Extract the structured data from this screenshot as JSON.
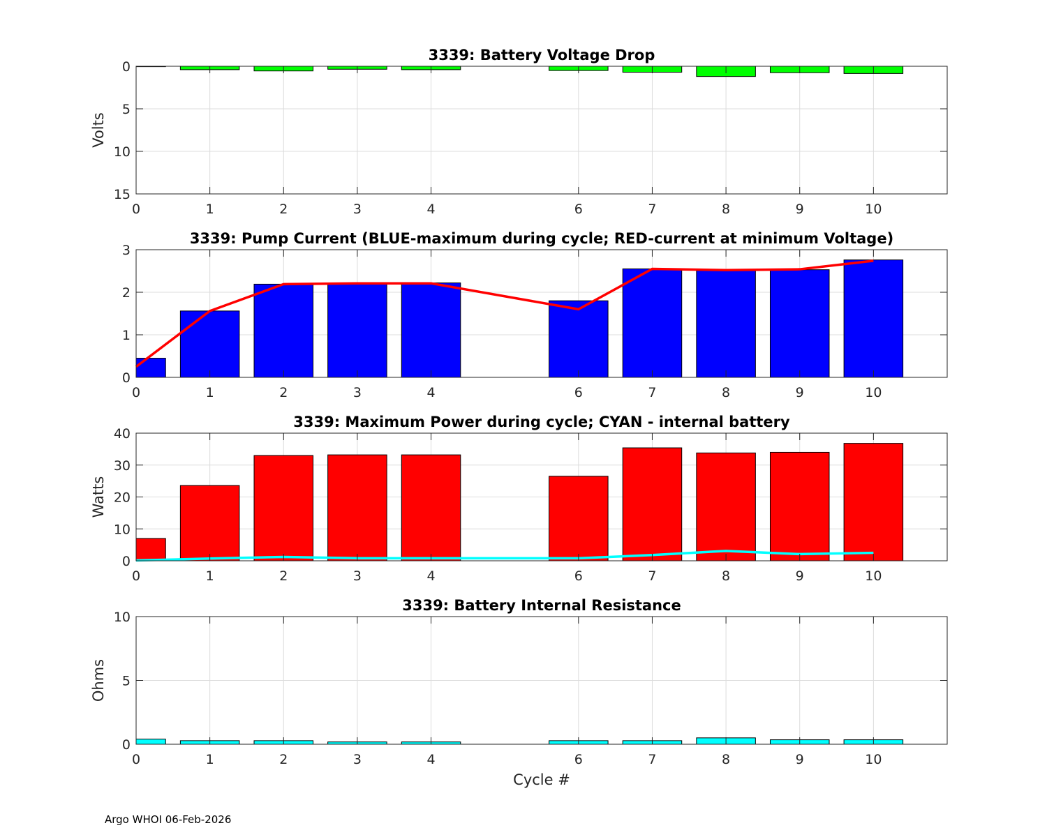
{
  "footer": "Argo WHOI 06-Feb-2026",
  "chart_data": [
    {
      "type": "bar",
      "id": "voltage-drop",
      "title": "3339: Battery Voltage Drop",
      "xlabel": "",
      "ylabel": "Volts",
      "xlim": [
        0,
        11
      ],
      "ylim": [
        0,
        15
      ],
      "y_reversed": true,
      "xticks": [
        "0",
        "1",
        "2",
        "3",
        "4",
        "6",
        "7",
        "8",
        "9",
        "10"
      ],
      "yticks": [
        "0",
        "5",
        "10",
        "15"
      ],
      "grid": true,
      "bar_color": "#00ff00",
      "x": [
        0,
        1,
        2,
        3,
        4,
        6,
        7,
        8,
        9,
        10
      ],
      "values": [
        0.05,
        0.4,
        0.55,
        0.35,
        0.4,
        0.5,
        0.7,
        1.2,
        0.75,
        0.85
      ]
    },
    {
      "type": "bar",
      "id": "pump-current",
      "title": "3339: Pump Current (BLUE-maximum during cycle; RED-current at minimum Voltage)",
      "xlabel": "",
      "ylabel": "",
      "xlim": [
        0,
        11
      ],
      "ylim": [
        0,
        3
      ],
      "xticks": [
        "0",
        "1",
        "2",
        "3",
        "4",
        "6",
        "7",
        "8",
        "9",
        "10"
      ],
      "yticks": [
        "0",
        "1",
        "2",
        "3"
      ],
      "grid": true,
      "bar_color": "#0000ff",
      "x": [
        0,
        1,
        2,
        3,
        4,
        6,
        7,
        8,
        9,
        10
      ],
      "values": [
        0.45,
        1.56,
        2.19,
        2.21,
        2.22,
        1.8,
        2.55,
        2.51,
        2.53,
        2.76
      ],
      "line": {
        "name": "current at minimum Voltage",
        "color": "#ff0000",
        "x": [
          0,
          1,
          2,
          3,
          4,
          6,
          7,
          8,
          9,
          10
        ],
        "values": [
          0.25,
          1.56,
          2.19,
          2.21,
          2.21,
          1.6,
          2.55,
          2.52,
          2.54,
          2.74
        ]
      }
    },
    {
      "type": "bar",
      "id": "max-power",
      "title": "3339: Maximum Power during cycle; CYAN - internal battery",
      "xlabel": "",
      "ylabel": "Watts",
      "xlim": [
        0,
        11
      ],
      "ylim": [
        0,
        40
      ],
      "xticks": [
        "0",
        "1",
        "2",
        "3",
        "4",
        "6",
        "7",
        "8",
        "9",
        "10"
      ],
      "yticks": [
        "0",
        "10",
        "20",
        "30",
        "40"
      ],
      "grid": true,
      "bar_color": "#ff0000",
      "x": [
        0,
        1,
        2,
        3,
        4,
        6,
        7,
        8,
        9,
        10
      ],
      "values": [
        7,
        23.6,
        33,
        33.2,
        33.2,
        26.5,
        35.4,
        33.8,
        34,
        36.8
      ],
      "line": {
        "name": "internal battery",
        "color": "#00ffff",
        "x": [
          0,
          1,
          2,
          3,
          4,
          6,
          7,
          8,
          9,
          10
        ],
        "values": [
          0.1,
          0.7,
          1.2,
          0.8,
          0.8,
          0.8,
          1.8,
          3.1,
          2.1,
          2.5
        ]
      }
    },
    {
      "type": "bar",
      "id": "internal-resistance",
      "title": "3339: Battery Internal Resistance",
      "xlabel": "Cycle #",
      "ylabel": "Ohms",
      "xlim": [
        0,
        11
      ],
      "ylim": [
        0,
        10
      ],
      "xticks": [
        "0",
        "1",
        "2",
        "3",
        "4",
        "6",
        "7",
        "8",
        "9",
        "10"
      ],
      "yticks": [
        "0",
        "5",
        "10"
      ],
      "grid": true,
      "bar_color": "#00ffff",
      "x": [
        0,
        1,
        2,
        3,
        4,
        6,
        7,
        8,
        9,
        10
      ],
      "values": [
        0.4,
        0.28,
        0.28,
        0.18,
        0.18,
        0.28,
        0.28,
        0.5,
        0.35,
        0.35
      ]
    }
  ]
}
